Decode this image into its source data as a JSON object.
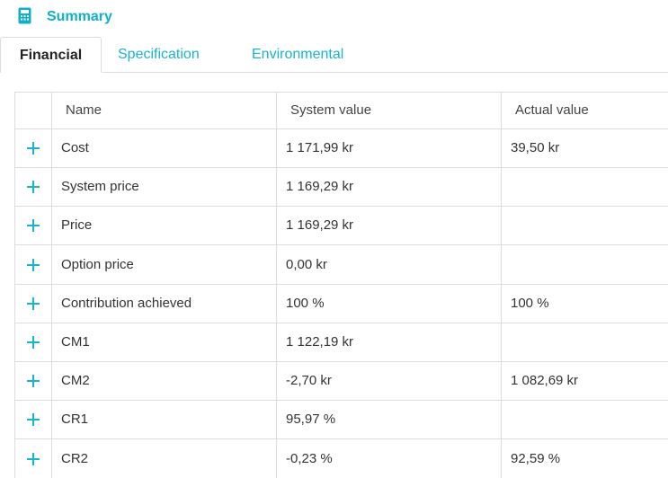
{
  "header": {
    "title": "Summary",
    "icon": "calculator-icon",
    "accent_color": "#0fb0c8"
  },
  "tabs": [
    {
      "label": "Financial",
      "active": true
    },
    {
      "label": "Specification",
      "active": false
    },
    {
      "label": "Environmental",
      "active": false
    }
  ],
  "table": {
    "columns": [
      "Name",
      "System value",
      "Actual value"
    ],
    "rows": [
      {
        "name": "Cost",
        "system_value": "1 171,99 kr",
        "actual_value": "39,50 kr"
      },
      {
        "name": "System price",
        "system_value": "1 169,29 kr",
        "actual_value": ""
      },
      {
        "name": "Price",
        "system_value": "1 169,29 kr",
        "actual_value": ""
      },
      {
        "name": "Option price",
        "system_value": "0,00 kr",
        "actual_value": ""
      },
      {
        "name": "Contribution achieved",
        "system_value": "100 %",
        "actual_value": "100 %"
      },
      {
        "name": "CM1",
        "system_value": "1 122,19 kr",
        "actual_value": ""
      },
      {
        "name": "CM2",
        "system_value": "-2,70 kr",
        "actual_value": "1 082,69 kr"
      },
      {
        "name": "CR1",
        "system_value": "95,97 %",
        "actual_value": ""
      },
      {
        "name": "CR2",
        "system_value": "-0,23 %",
        "actual_value": "92,59 %"
      }
    ]
  }
}
